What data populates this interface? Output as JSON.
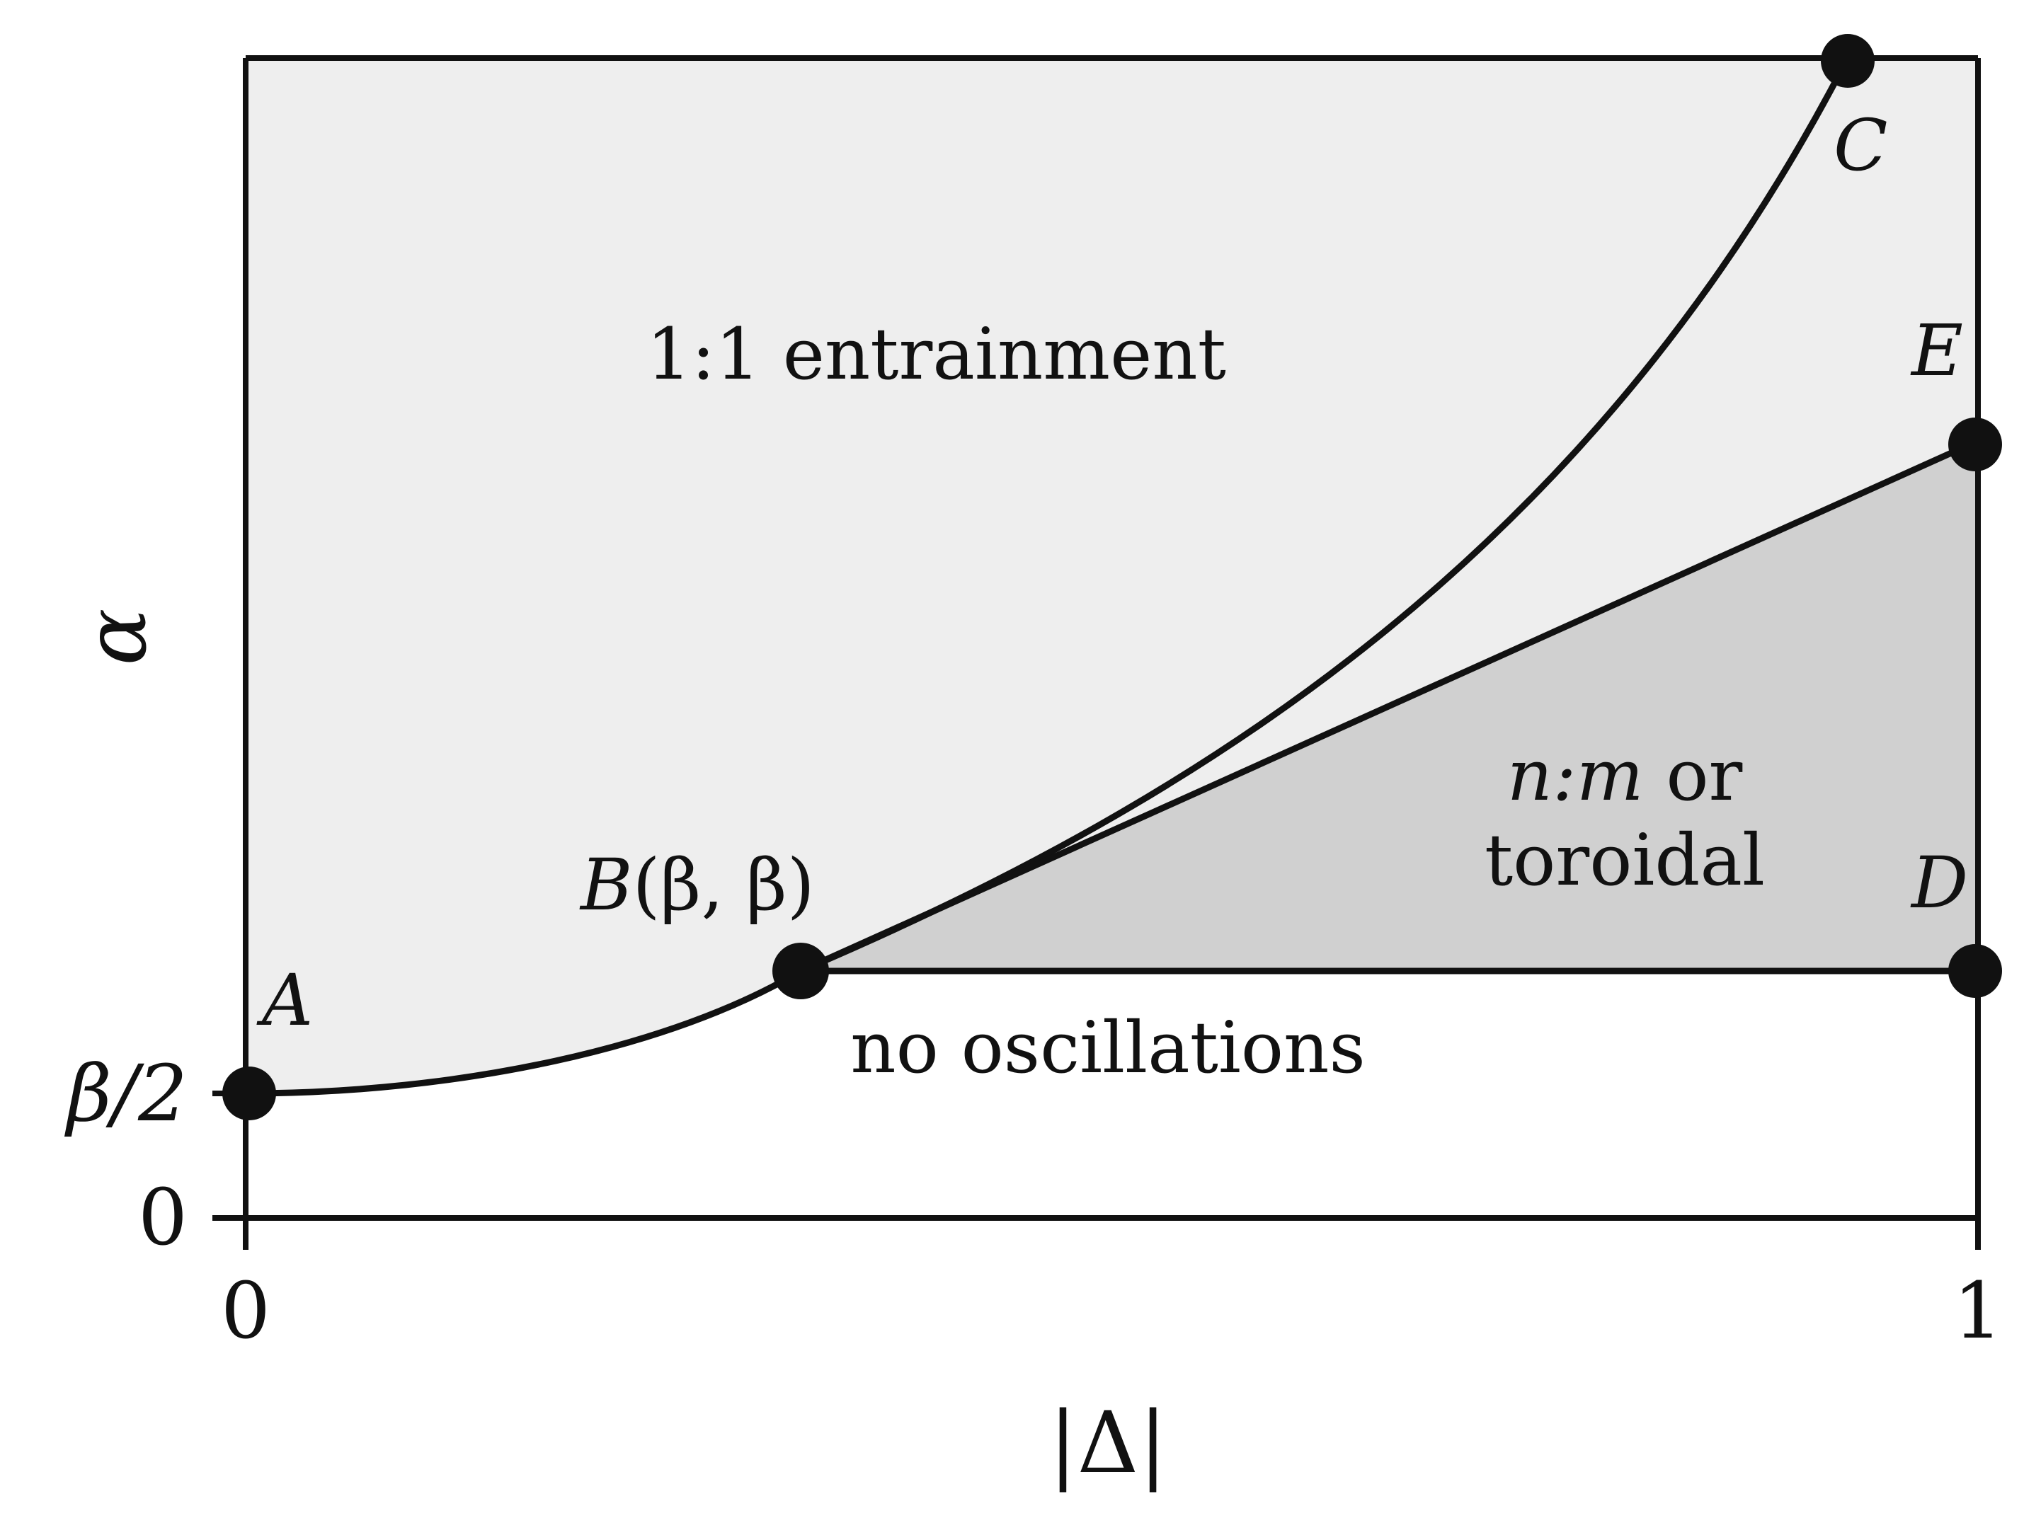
{
  "diagram": {
    "axes": {
      "x_label": "|Δ|",
      "y_label": "α",
      "x_ticks": [
        "0",
        "1"
      ],
      "y_ticks": [
        "0",
        "β/2"
      ]
    },
    "regions": {
      "entrainment": "1:1 entrainment",
      "nm_line1_italic": "n:m",
      "nm_line1_rest": " or",
      "nm_line2": "toroidal",
      "no_osc": "no oscillations"
    },
    "points": {
      "A": "A",
      "B_letter": "B",
      "B_coords": "(β, β)",
      "C": "C",
      "D": "D",
      "E": "E"
    },
    "colors": {
      "light_region": "#eeeeee",
      "dark_region": "#d0d0d0",
      "line": "#111111"
    }
  }
}
